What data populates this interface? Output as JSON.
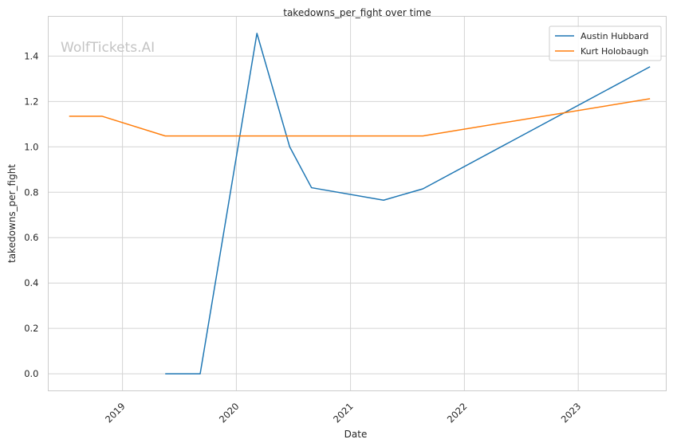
{
  "chart_data": {
    "type": "line",
    "title": "takedowns_per_fight over time",
    "xlabel": "Date",
    "ylabel": "takedowns_per_fight",
    "watermark": "WolfTickets.AI",
    "xlim": [
      "2018-05-08",
      "2023-10-10"
    ],
    "ylim": [
      -0.075,
      1.575
    ],
    "x_ticks": [
      {
        "date": "2019-01-01",
        "label": "2019"
      },
      {
        "date": "2020-01-01",
        "label": "2020"
      },
      {
        "date": "2021-01-01",
        "label": "2021"
      },
      {
        "date": "2022-01-01",
        "label": "2022"
      },
      {
        "date": "2023-01-01",
        "label": "2023"
      }
    ],
    "y_ticks": [
      {
        "value": 0.0,
        "label": "0.0"
      },
      {
        "value": 0.2,
        "label": "0.2"
      },
      {
        "value": 0.4,
        "label": "0.4"
      },
      {
        "value": 0.6,
        "label": "0.6"
      },
      {
        "value": 0.8,
        "label": "0.8"
      },
      {
        "value": 1.0,
        "label": "1.0"
      },
      {
        "value": 1.2,
        "label": "1.2"
      },
      {
        "value": 1.4,
        "label": "1.4"
      }
    ],
    "grid": true,
    "legend_position": "top-right",
    "series": [
      {
        "name": "Austin Hubbard",
        "color": "#1f77b4",
        "points": [
          {
            "x": "2019-05-18",
            "y": 0.0
          },
          {
            "x": "2019-09-07",
            "y": 0.0
          },
          {
            "x": "2020-03-07",
            "y": 1.5
          },
          {
            "x": "2020-06-20",
            "y": 1.0
          },
          {
            "x": "2020-08-29",
            "y": 0.82
          },
          {
            "x": "2021-04-17",
            "y": 0.765
          },
          {
            "x": "2021-08-21",
            "y": 0.815
          },
          {
            "x": "2023-08-19",
            "y": 1.353
          }
        ]
      },
      {
        "name": "Kurt Holobaugh",
        "color": "#ff7f0e",
        "points": [
          {
            "x": "2018-07-14",
            "y": 1.135
          },
          {
            "x": "2018-10-27",
            "y": 1.135
          },
          {
            "x": "2019-05-18",
            "y": 1.048
          },
          {
            "x": "2021-08-21",
            "y": 1.048
          },
          {
            "x": "2023-08-19",
            "y": 1.212
          }
        ]
      }
    ]
  }
}
